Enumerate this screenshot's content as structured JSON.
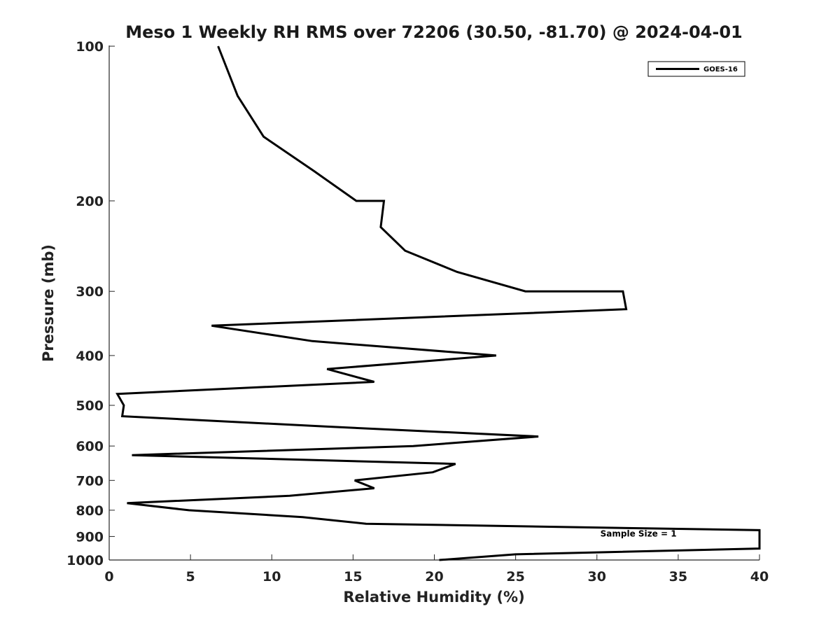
{
  "chart_data": {
    "type": "line",
    "title": "Meso 1 Weekly RH RMS over 72206 (30.50, -81.70) @ 2024-04-01",
    "xlabel": "Relative Humidity (%)",
    "ylabel": "Pressure (mb)",
    "xlim": [
      0,
      40
    ],
    "ylim": [
      100,
      1000
    ],
    "y_scale": "log",
    "y_reversed": true,
    "x_ticks": [
      0,
      5,
      10,
      15,
      20,
      25,
      30,
      35,
      40
    ],
    "y_ticks": [
      100,
      200,
      300,
      400,
      500,
      600,
      700,
      800,
      900,
      1000
    ],
    "grid": false,
    "legend_position": "top-right",
    "series": [
      {
        "name": "GOES-16",
        "color": "#000000",
        "points": [
          {
            "x": 6.7,
            "y": 100
          },
          {
            "x": 7.9,
            "y": 125
          },
          {
            "x": 9.5,
            "y": 150
          },
          {
            "x": 12.6,
            "y": 175
          },
          {
            "x": 15.2,
            "y": 200
          },
          {
            "x": 16.9,
            "y": 200
          },
          {
            "x": 16.7,
            "y": 225
          },
          {
            "x": 18.2,
            "y": 250
          },
          {
            "x": 21.4,
            "y": 275
          },
          {
            "x": 25.6,
            "y": 300
          },
          {
            "x": 31.6,
            "y": 300
          },
          {
            "x": 31.8,
            "y": 325
          },
          {
            "x": 6.3,
            "y": 350
          },
          {
            "x": 12.5,
            "y": 375
          },
          {
            "x": 23.8,
            "y": 400
          },
          {
            "x": 13.4,
            "y": 425
          },
          {
            "x": 16.3,
            "y": 450
          },
          {
            "x": 0.5,
            "y": 475
          },
          {
            "x": 0.9,
            "y": 500
          },
          {
            "x": 0.8,
            "y": 525
          },
          {
            "x": 13.4,
            "y": 550
          },
          {
            "x": 26.4,
            "y": 575
          },
          {
            "x": 18.7,
            "y": 600
          },
          {
            "x": 1.4,
            "y": 625
          },
          {
            "x": 21.3,
            "y": 650
          },
          {
            "x": 19.9,
            "y": 675
          },
          {
            "x": 15.1,
            "y": 700
          },
          {
            "x": 16.3,
            "y": 725
          },
          {
            "x": 11.1,
            "y": 750
          },
          {
            "x": 1.1,
            "y": 775
          },
          {
            "x": 4.9,
            "y": 800
          },
          {
            "x": 11.9,
            "y": 825
          },
          {
            "x": 15.8,
            "y": 850
          },
          {
            "x": 40.0,
            "y": 875
          },
          {
            "x": 40.0,
            "y": 950
          },
          {
            "x": 25.0,
            "y": 975
          },
          {
            "x": 20.3,
            "y": 1000
          }
        ]
      }
    ],
    "annotations": [
      {
        "text": "Sample Size = 1",
        "x": 34.9,
        "y": 900
      }
    ]
  }
}
